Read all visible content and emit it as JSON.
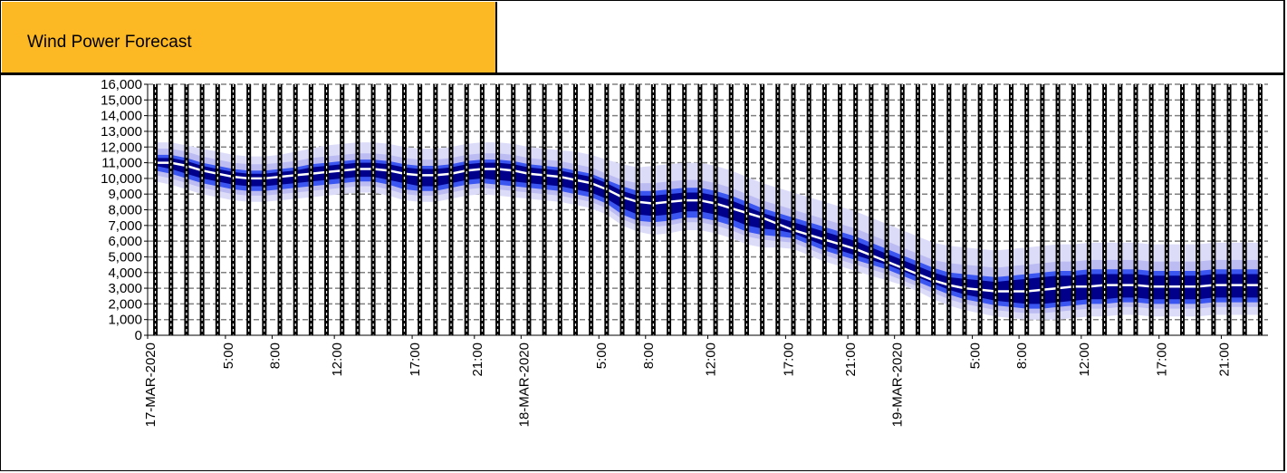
{
  "header": {
    "title": "Wind Power Forecast"
  },
  "colors": {
    "header_fill": "#fdb924",
    "band_10_90": "#dcdcf8",
    "band_20_80": "#bcbcf2",
    "band_30_70": "#3a55f0",
    "band_40_60": "#00008b",
    "median_line": "#ffffff",
    "gridline": "#808080",
    "hour_bar": "#000000"
  },
  "chart_data": {
    "type": "area",
    "title": "",
    "xlabel": "",
    "ylabel": "",
    "ylim": [
      0,
      16000
    ],
    "yticks": [
      "0",
      "1,000",
      "2,000",
      "3,000",
      "4,000",
      "5,000",
      "6,000",
      "7,000",
      "8,000",
      "9,000",
      "10,000",
      "11,000",
      "12,000",
      "13,000",
      "14,000",
      "15,000",
      "16,000"
    ],
    "x_hours": [
      0,
      1,
      2,
      3,
      4,
      5,
      6,
      7,
      8,
      9,
      10,
      11,
      12,
      13,
      14,
      15,
      16,
      17,
      18,
      19,
      20,
      21,
      22,
      23,
      24,
      25,
      26,
      27,
      28,
      29,
      30,
      31,
      32,
      33,
      34,
      35,
      36,
      37,
      38,
      39,
      40,
      41,
      42,
      43,
      44,
      45,
      46,
      47,
      48,
      49,
      50,
      51,
      52,
      53,
      54,
      55,
      56,
      57,
      58,
      59,
      60,
      61,
      62,
      63,
      64,
      65,
      66,
      67,
      68,
      69,
      70,
      71
    ],
    "x_tick_labels": [
      {
        "hour": 0,
        "label": "17-MAR-2020"
      },
      {
        "hour": 5,
        "label": "5:00"
      },
      {
        "hour": 8,
        "label": "8:00"
      },
      {
        "hour": 12,
        "label": "12:00"
      },
      {
        "hour": 17,
        "label": "17:00"
      },
      {
        "hour": 21,
        "label": "21:00"
      },
      {
        "hour": 24,
        "label": "18-MAR-2020"
      },
      {
        "hour": 29,
        "label": "5:00"
      },
      {
        "hour": 32,
        "label": "8:00"
      },
      {
        "hour": 36,
        "label": "12:00"
      },
      {
        "hour": 41,
        "label": "17:00"
      },
      {
        "hour": 45,
        "label": "21:00"
      },
      {
        "hour": 48,
        "label": "19-MAR-2020"
      },
      {
        "hour": 53,
        "label": "5:00"
      },
      {
        "hour": 56,
        "label": "8:00"
      },
      {
        "hour": 60,
        "label": "12:00"
      },
      {
        "hour": 65,
        "label": "17:00"
      },
      {
        "hour": 69,
        "label": "21:00"
      }
    ],
    "grid": true,
    "series": [
      {
        "name": "",
        "quantile": "p10",
        "values": [
          9800,
          9600,
          9300,
          9000,
          8800,
          8600,
          8500,
          8500,
          8600,
          8700,
          8800,
          8900,
          9000,
          9100,
          9100,
          8900,
          8600,
          8500,
          8500,
          8700,
          8900,
          9000,
          8900,
          8800,
          8700,
          8600,
          8500,
          8300,
          8100,
          7700,
          7000,
          6600,
          6400,
          6500,
          6700,
          6700,
          6500,
          6200,
          5800,
          5600,
          5600,
          5500,
          5100,
          4700,
          4400,
          4100,
          3800,
          3500,
          3200,
          2800,
          2300,
          1900,
          1600,
          1400,
          1200,
          1100,
          1000,
          1000,
          1000,
          1100,
          1200,
          1200,
          1300,
          1300,
          1200,
          1200,
          1200,
          1200,
          1300,
          1300,
          1300,
          1300
        ]
      },
      {
        "name": "",
        "quantile": "p20",
        "values": [
          10200,
          10000,
          9700,
          9400,
          9200,
          9000,
          8900,
          8900,
          9000,
          9100,
          9200,
          9300,
          9400,
          9500,
          9500,
          9300,
          9000,
          8900,
          8900,
          9100,
          9300,
          9400,
          9300,
          9200,
          9100,
          9000,
          8900,
          8700,
          8500,
          8100,
          7400,
          7000,
          6900,
          7000,
          7200,
          7200,
          7000,
          6700,
          6300,
          6100,
          6000,
          5900,
          5500,
          5100,
          4800,
          4500,
          4200,
          3900,
          3500,
          3100,
          2700,
          2300,
          2000,
          1800,
          1600,
          1500,
          1400,
          1400,
          1500,
          1600,
          1700,
          1700,
          1800,
          1800,
          1700,
          1700,
          1700,
          1700,
          1800,
          1800,
          1800,
          1800
        ]
      },
      {
        "name": "",
        "quantile": "p30",
        "values": [
          10500,
          10300,
          10000,
          9700,
          9500,
          9300,
          9200,
          9200,
          9300,
          9400,
          9500,
          9600,
          9700,
          9800,
          9800,
          9600,
          9300,
          9200,
          9200,
          9400,
          9600,
          9700,
          9600,
          9500,
          9400,
          9300,
          9200,
          9000,
          8800,
          8400,
          7700,
          7300,
          7200,
          7300,
          7500,
          7500,
          7300,
          7000,
          6600,
          6400,
          6300,
          6200,
          5800,
          5400,
          5100,
          4800,
          4500,
          4200,
          3800,
          3400,
          3000,
          2600,
          2300,
          2100,
          1900,
          1800,
          1700,
          1700,
          1800,
          1900,
          2000,
          2000,
          2100,
          2100,
          2000,
          2000,
          2000,
          2000,
          2100,
          2100,
          2100,
          2100
        ]
      },
      {
        "name": "",
        "quantile": "p40",
        "values": [
          10800,
          10600,
          10300,
          10000,
          9800,
          9600,
          9500,
          9500,
          9600,
          9700,
          9800,
          9900,
          10000,
          10100,
          10100,
          9900,
          9700,
          9500,
          9500,
          9700,
          9900,
          10000,
          9900,
          9800,
          9700,
          9600,
          9500,
          9300,
          9100,
          8700,
          8100,
          7700,
          7600,
          7700,
          7900,
          7900,
          7700,
          7400,
          7000,
          6800,
          6700,
          6500,
          6100,
          5700,
          5400,
          5100,
          4800,
          4500,
          4100,
          3700,
          3300,
          2900,
          2600,
          2400,
          2200,
          2100,
          2000,
          2000,
          2100,
          2200,
          2300,
          2300,
          2400,
          2400,
          2300,
          2300,
          2300,
          2300,
          2400,
          2400,
          2400,
          2400
        ]
      },
      {
        "name": "",
        "quantile": "p50",
        "values": [
          11000,
          11000,
          10800,
          10500,
          10300,
          10100,
          10000,
          10000,
          10100,
          10200,
          10300,
          10400,
          10500,
          10600,
          10600,
          10500,
          10300,
          10200,
          10200,
          10300,
          10500,
          10600,
          10600,
          10500,
          10300,
          10200,
          10100,
          9900,
          9700,
          9300,
          8800,
          8500,
          8400,
          8500,
          8600,
          8600,
          8400,
          8100,
          7800,
          7500,
          7100,
          6700,
          6400,
          6100,
          5800,
          5500,
          5100,
          4700,
          4300,
          3900,
          3500,
          3200,
          3000,
          2900,
          2800,
          2800,
          2800,
          2900,
          3000,
          3100,
          3100,
          3200,
          3200,
          3200,
          3100,
          3100,
          3100,
          3100,
          3200,
          3200,
          3200,
          3200
        ]
      },
      {
        "name": "",
        "quantile": "p60",
        "values": [
          11300,
          11300,
          11100,
          10800,
          10600,
          10400,
          10300,
          10300,
          10400,
          10500,
          10700,
          10800,
          10900,
          11000,
          11000,
          10900,
          10700,
          10600,
          10600,
          10700,
          10900,
          11000,
          11000,
          10900,
          10700,
          10600,
          10500,
          10300,
          10100,
          9700,
          9200,
          8900,
          8900,
          9000,
          9100,
          9100,
          8900,
          8600,
          8200,
          7800,
          7500,
          7200,
          6900,
          6600,
          6300,
          6000,
          5600,
          5200,
          4800,
          4400,
          4000,
          3700,
          3600,
          3500,
          3400,
          3500,
          3600,
          3700,
          3800,
          3800,
          3900,
          3900,
          3900,
          3900,
          3800,
          3800,
          3800,
          3800,
          3900,
          3900,
          3900,
          3900
        ]
      },
      {
        "name": "",
        "quantile": "p70",
        "values": [
          11500,
          11500,
          11300,
          11000,
          10800,
          10600,
          10500,
          10500,
          10600,
          10700,
          10900,
          11000,
          11100,
          11200,
          11200,
          11100,
          10900,
          10800,
          10800,
          10900,
          11100,
          11200,
          11200,
          11100,
          10900,
          10800,
          10700,
          10500,
          10300,
          9900,
          9500,
          9200,
          9200,
          9300,
          9400,
          9400,
          9200,
          8900,
          8500,
          8100,
          7800,
          7500,
          7200,
          6900,
          6600,
          6300,
          5900,
          5500,
          5100,
          4700,
          4300,
          4000,
          3900,
          3800,
          3700,
          3800,
          3900,
          4000,
          4100,
          4100,
          4200,
          4200,
          4200,
          4200,
          4100,
          4100,
          4100,
          4100,
          4200,
          4200,
          4200,
          4200
        ]
      },
      {
        "name": "",
        "quantile": "p80",
        "values": [
          11900,
          11900,
          11700,
          11400,
          11200,
          11000,
          10900,
          10900,
          11000,
          11100,
          11300,
          11400,
          11500,
          11600,
          11600,
          11500,
          11300,
          11200,
          11200,
          11300,
          11500,
          11600,
          11600,
          11500,
          11300,
          11200,
          11100,
          10900,
          10700,
          10300,
          9900,
          9700,
          9700,
          9800,
          9900,
          9900,
          9700,
          9400,
          9000,
          8600,
          8300,
          8000,
          7700,
          7400,
          7100,
          6800,
          6400,
          6000,
          5600,
          5200,
          4800,
          4600,
          4500,
          4400,
          4300,
          4400,
          4500,
          4600,
          4700,
          4700,
          4800,
          4800,
          4800,
          4800,
          4700,
          4700,
          4700,
          4700,
          4800,
          4800,
          4800,
          4800
        ]
      },
      {
        "name": "",
        "quantile": "p90",
        "values": [
          12300,
          12300,
          12100,
          11900,
          11700,
          11500,
          11400,
          11400,
          11500,
          11700,
          11900,
          12100,
          12200,
          12300,
          12300,
          12200,
          12000,
          11900,
          11900,
          12000,
          12200,
          12300,
          12300,
          12200,
          12000,
          11900,
          11800,
          11700,
          11500,
          11200,
          10900,
          10700,
          10800,
          10900,
          11000,
          11000,
          10800,
          10500,
          10100,
          9700,
          9400,
          9100,
          8800,
          8500,
          8200,
          7900,
          7500,
          7100,
          6700,
          6300,
          5900,
          5700,
          5600,
          5500,
          5400,
          5500,
          5600,
          5700,
          5800,
          5800,
          5900,
          5900,
          5900,
          5900,
          5800,
          5800,
          5800,
          5800,
          5900,
          5900,
          5900,
          5900
        ]
      }
    ]
  }
}
